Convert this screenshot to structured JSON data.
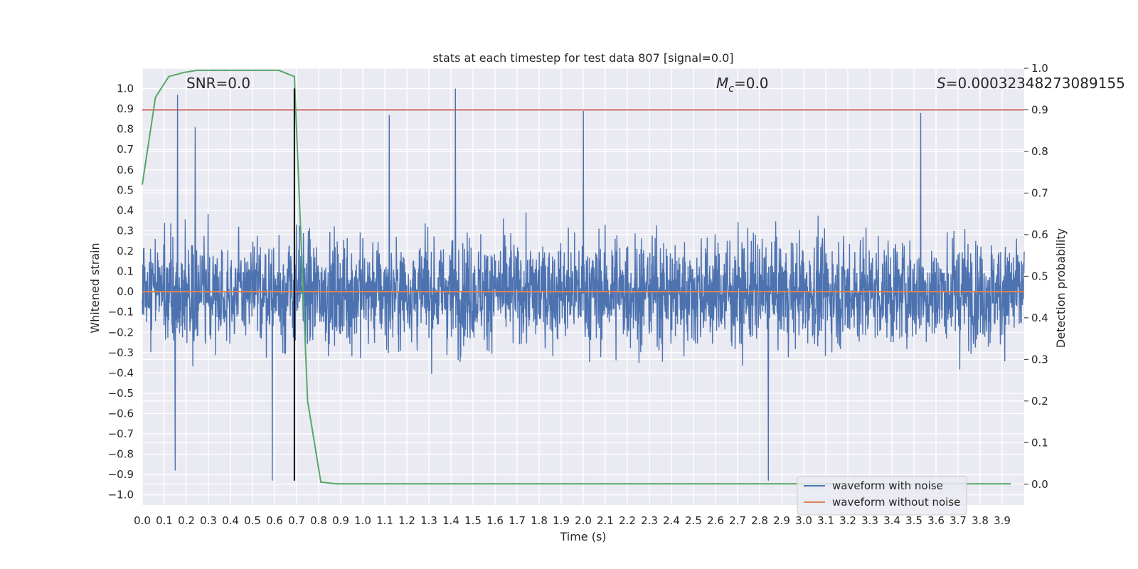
{
  "chart_data": {
    "type": "line",
    "title": "stats at each timestep for test data 807 [signal=0.0]",
    "xlabel": "Time (s)",
    "ylabel_left": "Whitened strain",
    "ylabel_right": "Detection probability",
    "xlim": [
      0.0,
      4.0
    ],
    "ylim_left": [
      -1.05,
      1.1
    ],
    "ylim_right": [
      -0.05,
      1.0
    ],
    "x_ticks": [
      0.0,
      0.1,
      0.2,
      0.3,
      0.4,
      0.5,
      0.6,
      0.7,
      0.8,
      0.9,
      1.0,
      1.1,
      1.2,
      1.3,
      1.4,
      1.5,
      1.6,
      1.7,
      1.8,
      1.9,
      2.0,
      2.1,
      2.2,
      2.3,
      2.4,
      2.5,
      2.6,
      2.7,
      2.8,
      2.9,
      3.0,
      3.1,
      3.2,
      3.3,
      3.4,
      3.5,
      3.6,
      3.7,
      3.8,
      3.9
    ],
    "y_ticks_left": [
      1.0,
      0.9,
      0.8,
      0.7,
      0.6,
      0.5,
      0.4,
      0.3,
      0.2,
      0.1,
      0.0,
      -0.1,
      -0.2,
      -0.3,
      -0.4,
      -0.5,
      -0.6,
      -0.7,
      -0.8,
      -0.9,
      -1.0
    ],
    "y_ticks_right": [
      1.0,
      0.9,
      0.8,
      0.7,
      0.6,
      0.5,
      0.4,
      0.3,
      0.2,
      0.1,
      0.0
    ],
    "grid": true,
    "legend_position": "lower-right",
    "annotations": {
      "snr": "SNR=0.0",
      "mc_symbol": "M",
      "mc_sub": "c",
      "mc_value": "=0.0",
      "s_symbol": "S",
      "s_value": "=0.00032348273089155"
    },
    "series": [
      {
        "name": "waveform with noise",
        "color": "#4c72b0",
        "axis": "left",
        "description_values": "dense noise approx. between -0.93 and 1.0",
        "spikes": [
          {
            "x": 0.16,
            "y": 0.97
          },
          {
            "x": 0.24,
            "y": 0.81
          },
          {
            "x": 1.12,
            "y": 0.87
          },
          {
            "x": 1.42,
            "y": 1.0
          },
          {
            "x": 2.0,
            "y": 0.89
          },
          {
            "x": 3.53,
            "y": 0.88
          },
          {
            "x": 0.59,
            "y": -0.93
          },
          {
            "x": 2.84,
            "y": -0.93
          },
          {
            "x": 0.15,
            "y": -0.88
          }
        ]
      },
      {
        "name": "waveform without noise",
        "color": "#dd8452",
        "axis": "left",
        "x": [
          0.0,
          4.0
        ],
        "y": [
          0.0,
          0.0
        ]
      },
      {
        "name": "detection probability",
        "color": "#55a868",
        "axis": "right",
        "x": [
          0.0,
          0.06,
          0.12,
          0.19,
          0.25,
          0.31,
          0.38,
          0.44,
          0.5,
          0.56,
          0.62,
          0.69,
          0.75,
          0.81,
          0.88,
          0.94,
          1.0,
          3.94
        ],
        "y": [
          0.72,
          0.93,
          0.98,
          0.99,
          0.995,
          0.995,
          0.995,
          0.995,
          0.995,
          0.995,
          0.995,
          0.98,
          0.2,
          0.005,
          0.001,
          0.001,
          0.001,
          0.001
        ]
      }
    ],
    "threshold": {
      "axis": "right",
      "value": 0.9,
      "color": "#c44e52"
    },
    "marker_line": {
      "x": 0.69,
      "y_top": 1.0,
      "y_bottom": -0.93,
      "color": "#000000"
    }
  }
}
